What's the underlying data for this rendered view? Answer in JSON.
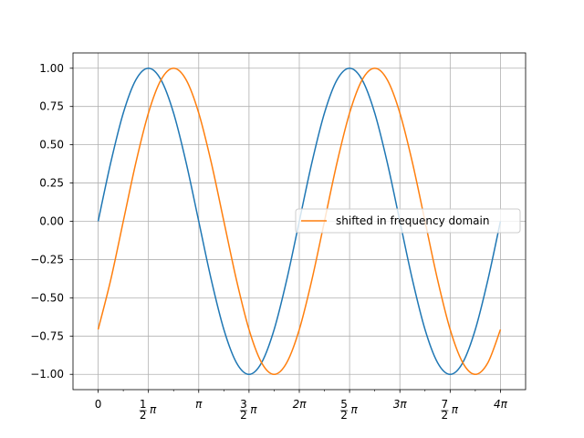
{
  "chart_data": {
    "type": "line",
    "title": "",
    "xlabel": "",
    "ylabel": "",
    "xlim": [
      -0.7854,
      13.3518
    ],
    "ylim": [
      -1.1,
      1.1
    ],
    "grid": true,
    "x_ticks": [
      {
        "value": 0,
        "label": "0",
        "num": "",
        "den": "",
        "sym": ""
      },
      {
        "value": 1.5708,
        "label": "",
        "num": "1",
        "den": "2",
        "sym": "π"
      },
      {
        "value": 3.1416,
        "label": "π",
        "num": "",
        "den": "",
        "sym": ""
      },
      {
        "value": 4.7124,
        "label": "",
        "num": "3",
        "den": "2",
        "sym": "π"
      },
      {
        "value": 6.2832,
        "label": "2π",
        "num": "",
        "den": "",
        "sym": ""
      },
      {
        "value": 7.854,
        "label": "",
        "num": "5",
        "den": "2",
        "sym": "π"
      },
      {
        "value": 9.4248,
        "label": "3π",
        "num": "",
        "den": "",
        "sym": ""
      },
      {
        "value": 10.9956,
        "label": "",
        "num": "7",
        "den": "2",
        "sym": "π"
      },
      {
        "value": 12.5664,
        "label": "4π",
        "num": "",
        "den": "",
        "sym": ""
      }
    ],
    "y_ticks": [
      {
        "value": 1.0,
        "label": "1.00"
      },
      {
        "value": 0.75,
        "label": "0.75"
      },
      {
        "value": 0.5,
        "label": "0.50"
      },
      {
        "value": 0.25,
        "label": "0.25"
      },
      {
        "value": 0.0,
        "label": "0.00"
      },
      {
        "value": -0.25,
        "label": "−0.25"
      },
      {
        "value": -0.5,
        "label": "−0.50"
      },
      {
        "value": -0.75,
        "label": "−0.75"
      },
      {
        "value": -1.0,
        "label": "−1.00"
      }
    ],
    "legend": {
      "placement": "center-right"
    },
    "series": [
      {
        "color": "#1f77b4",
        "points": [
          [
            0,
            0.0
          ],
          [
            0.3927,
            0.3827
          ],
          [
            0.7854,
            0.7071
          ],
          [
            1.1781,
            0.9239
          ],
          [
            1.5708,
            1.0
          ],
          [
            1.9635,
            0.9239
          ],
          [
            2.3562,
            0.7071
          ],
          [
            2.7489,
            0.3827
          ],
          [
            3.1416,
            0.0
          ],
          [
            3.5343,
            -0.3827
          ],
          [
            3.927,
            -0.7071
          ],
          [
            4.3197,
            -0.9239
          ],
          [
            4.7124,
            -1.0
          ],
          [
            5.1051,
            -0.9239
          ],
          [
            5.4978,
            -0.7071
          ],
          [
            5.8905,
            -0.3827
          ],
          [
            6.2832,
            0.0
          ],
          [
            6.6759,
            0.3827
          ],
          [
            7.0686,
            0.7071
          ],
          [
            7.4613,
            0.9239
          ],
          [
            7.854,
            1.0
          ],
          [
            8.2467,
            0.9239
          ],
          [
            8.6394,
            0.7071
          ],
          [
            9.0321,
            0.3827
          ],
          [
            9.4248,
            0.0
          ],
          [
            9.8175,
            -0.3827
          ],
          [
            10.2102,
            -0.7071
          ],
          [
            10.6029,
            -0.9239
          ],
          [
            10.9956,
            -1.0
          ],
          [
            11.3883,
            -0.9239
          ],
          [
            11.781,
            -0.7071
          ],
          [
            12.1737,
            -0.3827
          ],
          [
            12.5664,
            0.0
          ]
        ]
      },
      {
        "name": "shifted in frequency domain",
        "color": "#ff7f0e",
        "points": [
          [
            0,
            -0.7071
          ],
          [
            0.3927,
            -0.3827
          ],
          [
            0.7854,
            0.0
          ],
          [
            1.1781,
            0.3827
          ],
          [
            1.5708,
            0.7071
          ],
          [
            1.9635,
            0.9239
          ],
          [
            2.3562,
            1.0
          ],
          [
            2.7489,
            0.9239
          ],
          [
            3.1416,
            0.7071
          ],
          [
            3.5343,
            0.3827
          ],
          [
            3.927,
            0.0
          ],
          [
            4.3197,
            -0.3827
          ],
          [
            4.7124,
            -0.7071
          ],
          [
            5.1051,
            -0.9239
          ],
          [
            5.4978,
            -1.0
          ],
          [
            5.8905,
            -0.9239
          ],
          [
            6.2832,
            -0.7071
          ],
          [
            6.6759,
            -0.3827
          ],
          [
            7.0686,
            0.0
          ],
          [
            7.4613,
            0.3827
          ],
          [
            7.854,
            0.7071
          ],
          [
            8.2467,
            0.9239
          ],
          [
            8.6394,
            1.0
          ],
          [
            9.0321,
            0.9239
          ],
          [
            9.4248,
            0.7071
          ],
          [
            9.8175,
            0.3827
          ],
          [
            10.2102,
            0.0
          ],
          [
            10.6029,
            -0.3827
          ],
          [
            10.9956,
            -0.7071
          ],
          [
            11.3883,
            -0.9239
          ],
          [
            11.781,
            -1.0
          ],
          [
            12.1737,
            -0.9239
          ],
          [
            12.5664,
            -0.7071
          ]
        ]
      }
    ]
  }
}
